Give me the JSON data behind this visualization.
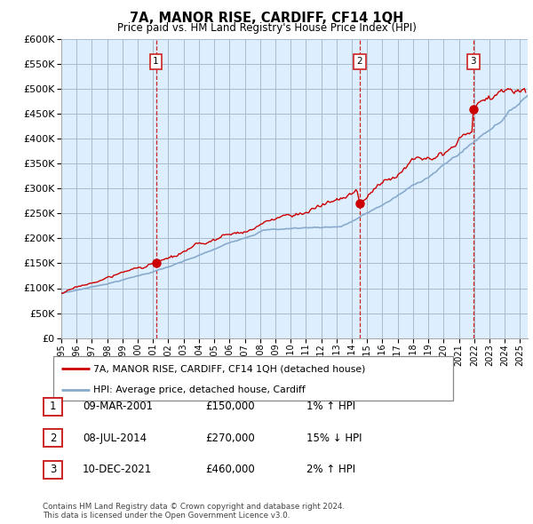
{
  "title": "7A, MANOR RISE, CARDIFF, CF14 1QH",
  "subtitle": "Price paid vs. HM Land Registry's House Price Index (HPI)",
  "ylim": [
    0,
    600000
  ],
  "yticks": [
    0,
    50000,
    100000,
    150000,
    200000,
    250000,
    300000,
    350000,
    400000,
    450000,
    500000,
    550000,
    600000
  ],
  "xlim_start": 1995.0,
  "xlim_end": 2025.5,
  "red_line_color": "#cc0000",
  "blue_line_color": "#88aacc",
  "plot_bg_color": "#ddeeff",
  "grid_color": "#aabbcc",
  "sale_events": [
    {
      "id": 1,
      "year": 2001.19,
      "price": 150000,
      "date": "09-MAR-2001",
      "hpi_pct": "1%",
      "hpi_dir": "↑"
    },
    {
      "id": 2,
      "year": 2014.52,
      "price": 270000,
      "date": "08-JUL-2014",
      "hpi_pct": "15%",
      "hpi_dir": "↓"
    },
    {
      "id": 3,
      "year": 2021.95,
      "price": 460000,
      "date": "10-DEC-2021",
      "hpi_pct": "2%",
      "hpi_dir": "↑"
    }
  ],
  "legend_label_red": "7A, MANOR RISE, CARDIFF, CF14 1QH (detached house)",
  "legend_label_blue": "HPI: Average price, detached house, Cardiff",
  "footer": "Contains HM Land Registry data © Crown copyright and database right 2024.\nThis data is licensed under the Open Government Licence v3.0.",
  "marker_box_color": "#cc2222",
  "sale_marker_color": "#cc0000"
}
